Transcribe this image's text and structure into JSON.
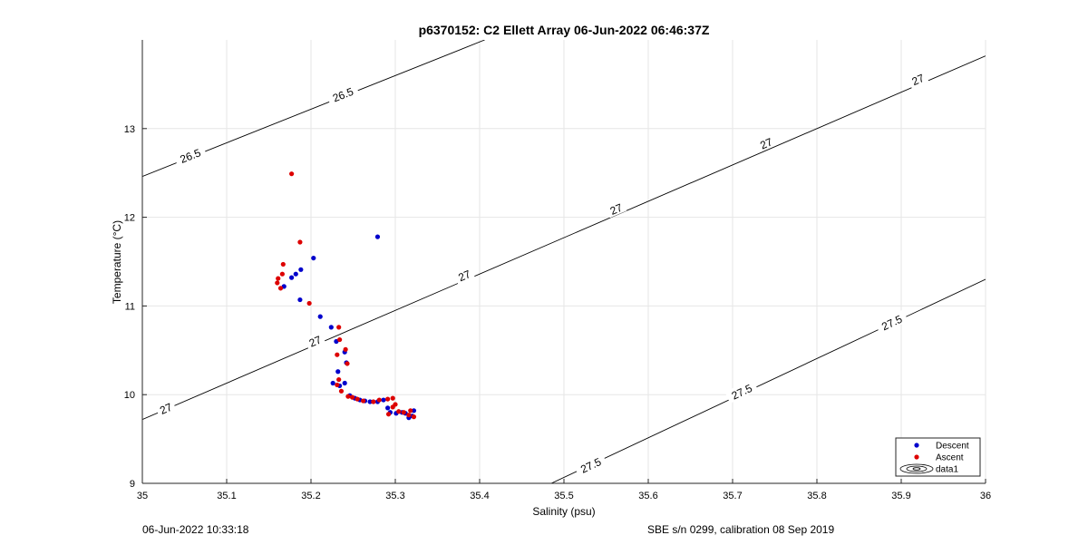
{
  "chart_data": {
    "type": "scatter",
    "title": "p6370152: C2 Ellett Array 06-Jun-2022 06:46:37Z",
    "xlabel": "Salinity (psu)",
    "ylabel": "Temperature (°C)",
    "xlim": [
      35,
      36
    ],
    "ylim": [
      9,
      14
    ],
    "grid": true,
    "legend_position": "bottom-right",
    "x_ticks": [
      "35",
      "35.1",
      "35.2",
      "35.3",
      "35.4",
      "35.5",
      "35.6",
      "35.7",
      "35.8",
      "35.9",
      "36"
    ],
    "y_ticks": [
      "9",
      "10",
      "11",
      "12",
      "13"
    ],
    "series": [
      {
        "name": "Descent",
        "color": "#0000cc",
        "points": [
          [
            35.279,
            11.78
          ],
          [
            35.203,
            11.54
          ],
          [
            35.188,
            11.41
          ],
          [
            35.182,
            11.36
          ],
          [
            35.177,
            11.32
          ],
          [
            35.168,
            11.22
          ],
          [
            35.187,
            11.07
          ],
          [
            35.211,
            10.88
          ],
          [
            35.224,
            10.76
          ],
          [
            35.23,
            10.6
          ],
          [
            35.24,
            10.48
          ],
          [
            35.242,
            10.36
          ],
          [
            35.232,
            10.26
          ],
          [
            35.234,
            10.1
          ],
          [
            35.24,
            10.13
          ],
          [
            35.226,
            10.13
          ],
          [
            35.246,
            9.99
          ],
          [
            35.252,
            9.96
          ],
          [
            35.258,
            9.94
          ],
          [
            35.264,
            9.93
          ],
          [
            35.27,
            9.92
          ],
          [
            35.279,
            9.92
          ],
          [
            35.286,
            9.94
          ],
          [
            35.291,
            9.85
          ],
          [
            35.294,
            9.8
          ],
          [
            35.301,
            9.79
          ],
          [
            35.308,
            9.8
          ],
          [
            35.312,
            9.79
          ],
          [
            35.316,
            9.74
          ],
          [
            35.32,
            9.76
          ],
          [
            35.322,
            9.82
          ]
        ]
      },
      {
        "name": "Ascent",
        "color": "#dd0000",
        "points": [
          [
            35.177,
            12.49
          ],
          [
            35.187,
            11.72
          ],
          [
            35.167,
            11.47
          ],
          [
            35.166,
            11.36
          ],
          [
            35.161,
            11.31
          ],
          [
            35.16,
            11.26
          ],
          [
            35.164,
            11.2
          ],
          [
            35.198,
            11.03
          ],
          [
            35.233,
            10.76
          ],
          [
            35.234,
            10.62
          ],
          [
            35.241,
            10.51
          ],
          [
            35.231,
            10.45
          ],
          [
            35.243,
            10.35
          ],
          [
            35.233,
            10.17
          ],
          [
            35.231,
            10.11
          ],
          [
            35.236,
            10.04
          ],
          [
            35.244,
            9.98
          ],
          [
            35.249,
            9.97
          ],
          [
            35.255,
            9.95
          ],
          [
            35.262,
            9.93
          ],
          [
            35.274,
            9.92
          ],
          [
            35.281,
            9.94
          ],
          [
            35.291,
            9.95
          ],
          [
            35.297,
            9.96
          ],
          [
            35.3,
            9.89
          ],
          [
            35.292,
            9.78
          ],
          [
            35.304,
            9.81
          ],
          [
            35.31,
            9.8
          ],
          [
            35.316,
            9.77
          ],
          [
            35.318,
            9.82
          ],
          [
            35.322,
            9.75
          ],
          [
            35.297,
            9.86
          ]
        ]
      },
      {
        "name": "data1",
        "type": "contour",
        "color": "#000000",
        "isopycnals": [
          {
            "label": "26.5",
            "points": [
              [
                35.0,
                12.46
              ],
              [
                35.406,
                14.0
              ]
            ],
            "label_positions": [
              [
                35.057,
                12.69
              ],
              [
                35.238,
                13.38
              ]
            ]
          },
          {
            "label": "27",
            "points": [
              [
                35.0,
                9.72
              ],
              [
                36.0,
                13.82
              ]
            ],
            "label_positions": [
              [
                35.028,
                9.84
              ],
              [
                35.205,
                10.6
              ],
              [
                35.382,
                11.34
              ],
              [
                35.562,
                12.09
              ],
              [
                35.74,
                12.83
              ],
              [
                35.92,
                13.55
              ]
            ]
          },
          {
            "label": "27.5",
            "points": [
              [
                35.485,
                9.0
              ],
              [
                36.0,
                11.3
              ]
            ],
            "label_positions": [
              [
                35.532,
                9.2
              ],
              [
                35.711,
                10.03
              ],
              [
                35.889,
                10.81
              ]
            ]
          }
        ]
      }
    ]
  },
  "footer": {
    "left": "06-Jun-2022 10:33:18",
    "right": "SBE s/n 0299, calibration 08 Sep 2019"
  }
}
